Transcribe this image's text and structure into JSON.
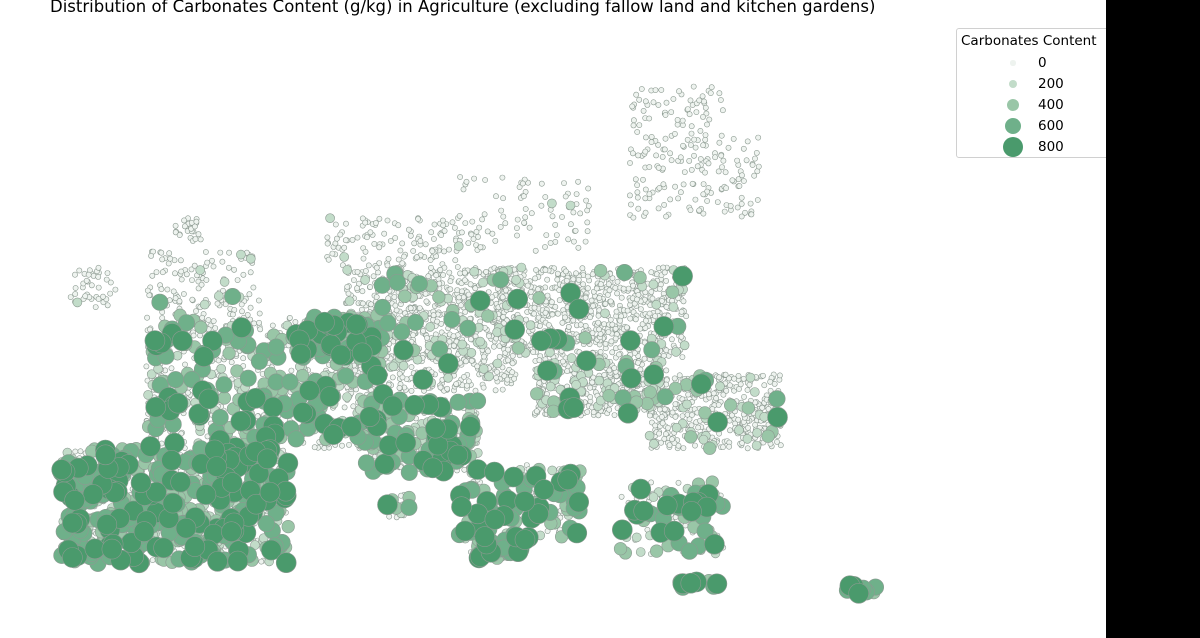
{
  "chart_data": {
    "type": "scatter",
    "title": "Distribution of Carbonates Content (g/kg) in Agriculture (excluding fallow land and kitchen gardens)",
    "size_variable": "Carbonates Content",
    "legend": {
      "title": "Carbonates Content",
      "placement": "top-right",
      "entries": [
        {
          "label": "0",
          "value": 0,
          "color": "#eef3ef"
        },
        {
          "label": "200",
          "value": 200,
          "color": "#c2dcc9"
        },
        {
          "label": "400",
          "value": 400,
          "color": "#99c6a7"
        },
        {
          "label": "600",
          "value": 600,
          "color": "#6fb08a"
        },
        {
          "label": "800",
          "value": 800,
          "color": "#4a9a6c"
        }
      ]
    },
    "marker_outline_color": "#8c9a91",
    "background": "#ffffff",
    "approx_point_count": 6000,
    "regions": [
      {
        "lon": [
          -8.5,
          -6.0
        ],
        "lat": [
          52.0,
          54.5
        ],
        "n": 40,
        "value_mix": [
          0.97,
          0.03,
          0,
          0,
          0
        ]
      },
      {
        "lon": [
          -4.5,
          1.5
        ],
        "lat": [
          50.5,
          55.5
        ],
        "n": 150,
        "value_mix": [
          0.9,
          0.05,
          0.03,
          0.02,
          0
        ]
      },
      {
        "lon": [
          -3.0,
          -1.5
        ],
        "lat": [
          56.0,
          57.5
        ],
        "n": 25,
        "value_mix": [
          1,
          0,
          0,
          0,
          0
        ]
      },
      {
        "lon": [
          5.0,
          12.0
        ],
        "lat": [
          54.5,
          57.5
        ],
        "n": 120,
        "value_mix": [
          0.98,
          0.02,
          0,
          0,
          0
        ]
      },
      {
        "lon": [
          12.0,
          19.0
        ],
        "lat": [
          55.5,
          60.0
        ],
        "n": 90,
        "value_mix": [
          0.98,
          0.02,
          0,
          0,
          0
        ]
      },
      {
        "lon": [
          21.0,
          28.0
        ],
        "lat": [
          57.5,
          62.5
        ],
        "n": 150,
        "value_mix": [
          1,
          0,
          0,
          0,
          0
        ]
      },
      {
        "lon": [
          21.0,
          26.0
        ],
        "lat": [
          62.5,
          65.5
        ],
        "n": 60,
        "value_mix": [
          1,
          0,
          0,
          0,
          0
        ]
      },
      {
        "lon": [
          -4.5,
          8.0
        ],
        "lat": [
          43.5,
          51.0
        ],
        "n": 700,
        "value_mix": [
          0.62,
          0.14,
          0.1,
          0.08,
          0.06
        ]
      },
      {
        "lon": [
          3.0,
          8.5
        ],
        "lat": [
          49.0,
          51.5
        ],
        "n": 200,
        "value_mix": [
          0.55,
          0.15,
          0.12,
          0.1,
          0.08
        ]
      },
      {
        "lon": [
          6.0,
          15.0
        ],
        "lat": [
          47.0,
          54.5
        ],
        "n": 900,
        "value_mix": [
          0.9,
          0.06,
          0.02,
          0.01,
          0.01
        ]
      },
      {
        "lon": [
          14.0,
          24.0
        ],
        "lat": [
          49.0,
          54.5
        ],
        "n": 800,
        "value_mix": [
          0.94,
          0.04,
          0.01,
          0.005,
          0.005
        ]
      },
      {
        "lon": [
          16.0,
          23.0
        ],
        "lat": [
          45.5,
          49.0
        ],
        "n": 400,
        "value_mix": [
          0.85,
          0.1,
          0.03,
          0.01,
          0.01
        ]
      },
      {
        "lon": [
          22.0,
          29.0
        ],
        "lat": [
          43.5,
          48.0
        ],
        "n": 450,
        "value_mix": [
          0.88,
          0.08,
          0.02,
          0.01,
          0.01
        ]
      },
      {
        "lon": [
          -9.0,
          3.0
        ],
        "lat": [
          36.5,
          43.5
        ],
        "n": 900,
        "value_mix": [
          0.45,
          0.15,
          0.15,
          0.13,
          0.12
        ]
      },
      {
        "lon": [
          7.0,
          13.0
        ],
        "lat": [
          42.0,
          46.5
        ],
        "n": 300,
        "value_mix": [
          0.55,
          0.15,
          0.12,
          0.1,
          0.08
        ]
      },
      {
        "lon": [
          12.0,
          18.5
        ],
        "lat": [
          38.0,
          42.5
        ],
        "n": 160,
        "value_mix": [
          0.4,
          0.15,
          0.15,
          0.15,
          0.15
        ]
      },
      {
        "lon": [
          12.5,
          15.5
        ],
        "lat": [
          36.8,
          38.2
        ],
        "n": 50,
        "value_mix": [
          0.2,
          0.1,
          0.2,
          0.25,
          0.25
        ]
      },
      {
        "lon": [
          8.2,
          9.6
        ],
        "lat": [
          39.0,
          41.0
        ],
        "n": 20,
        "value_mix": [
          0.7,
          0.1,
          0.1,
          0.05,
          0.05
        ]
      },
      {
        "lon": [
          20.5,
          26.0
        ],
        "lat": [
          37.0,
          41.5
        ],
        "n": 120,
        "value_mix": [
          0.45,
          0.15,
          0.15,
          0.13,
          0.12
        ]
      },
      {
        "lon": [
          23.5,
          26.0
        ],
        "lat": [
          35.0,
          35.5
        ],
        "n": 12,
        "value_mix": [
          0.2,
          0.2,
          0.2,
          0.2,
          0.2
        ]
      },
      {
        "lon": [
          32.3,
          34.0
        ],
        "lat": [
          34.7,
          35.2
        ],
        "n": 10,
        "value_mix": [
          0,
          0.1,
          0.3,
          0.3,
          0.3
        ]
      }
    ]
  }
}
